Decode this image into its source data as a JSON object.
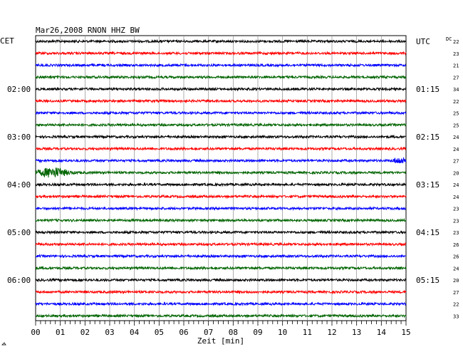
{
  "chart_data": {
    "type": "line",
    "title": "Mar26,2008   RNON HHZ BW",
    "left_timezone": "CET",
    "right_timezone": "UTC",
    "dc_label": "DC",
    "xlabel": "Zeit [min]",
    "xlim": [
      0,
      15
    ],
    "x_ticks": [
      "00",
      "01",
      "02",
      "03",
      "04",
      "05",
      "06",
      "07",
      "08",
      "09",
      "10",
      "11",
      "12",
      "13",
      "14",
      "15"
    ],
    "grid": true,
    "trace_colors": [
      "#000000",
      "#ff0000",
      "#0000ff",
      "#006400"
    ],
    "left_hour_labels": [
      {
        "trace": 4,
        "label": "02:00"
      },
      {
        "trace": 8,
        "label": "03:00"
      },
      {
        "trace": 12,
        "label": "04:00"
      },
      {
        "trace": 16,
        "label": "05:00"
      },
      {
        "trace": 20,
        "label": "06:00"
      }
    ],
    "right_hour_labels": [
      {
        "trace": 0,
        "label": "UTC"
      },
      {
        "trace": 4,
        "label": "01:15"
      },
      {
        "trace": 8,
        "label": "02:15"
      },
      {
        "trace": 12,
        "label": "03:15"
      },
      {
        "trace": 16,
        "label": "04:15"
      },
      {
        "trace": 20,
        "label": "05:15"
      }
    ],
    "dc_offsets": [
      22,
      23,
      21,
      27,
      34,
      22,
      25,
      25,
      24,
      24,
      27,
      20,
      24,
      24,
      23,
      23,
      23,
      26,
      26,
      24,
      20,
      27,
      22,
      33
    ],
    "events": [
      {
        "trace": 10,
        "x_start": 14.4,
        "x_end": 15.0,
        "amplitude": "small"
      },
      {
        "trace": 11,
        "x_start": 0.0,
        "x_end": 2.0,
        "amplitude": "large"
      }
    ]
  }
}
